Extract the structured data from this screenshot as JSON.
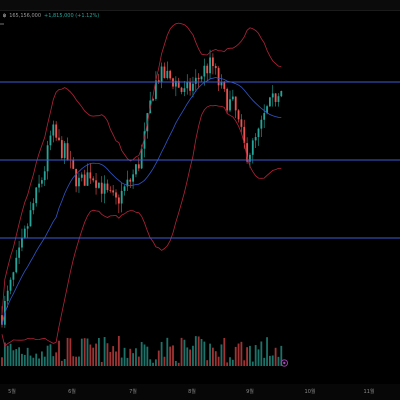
{
  "legend": {
    "symbol_icon": "coin-icon",
    "price_text": "165,156,000",
    "change_text": "+1,815,000 (+1.12%)",
    "colors": {
      "text": "#9a9a9a",
      "up": "#26a69a",
      "down": "#ef5350"
    }
  },
  "chart_data": {
    "type": "candlestick",
    "title": "",
    "xlabel": "",
    "ylabel": "",
    "x_ticks": [
      "5월",
      "6월",
      "7월",
      "8월",
      "9월",
      "10월",
      "11월"
    ],
    "ylim": [
      115,
      168
    ],
    "grid": false,
    "horizontal_levels": [
      158,
      145,
      132
    ],
    "last_volume_marker": true,
    "indicators": [
      "bollinger-bands",
      "moving-average"
    ],
    "colors": {
      "up": "#26a69a",
      "down": "#ef5350",
      "upper_band": "#b2233a",
      "lower_band": "#b2233a",
      "moving_average": "#2f56c8",
      "level_line": "#3b5bd6",
      "volume_up": "#1f7f76",
      "volume_down": "#b2383a",
      "marker": "#ab47bc"
    }
  }
}
